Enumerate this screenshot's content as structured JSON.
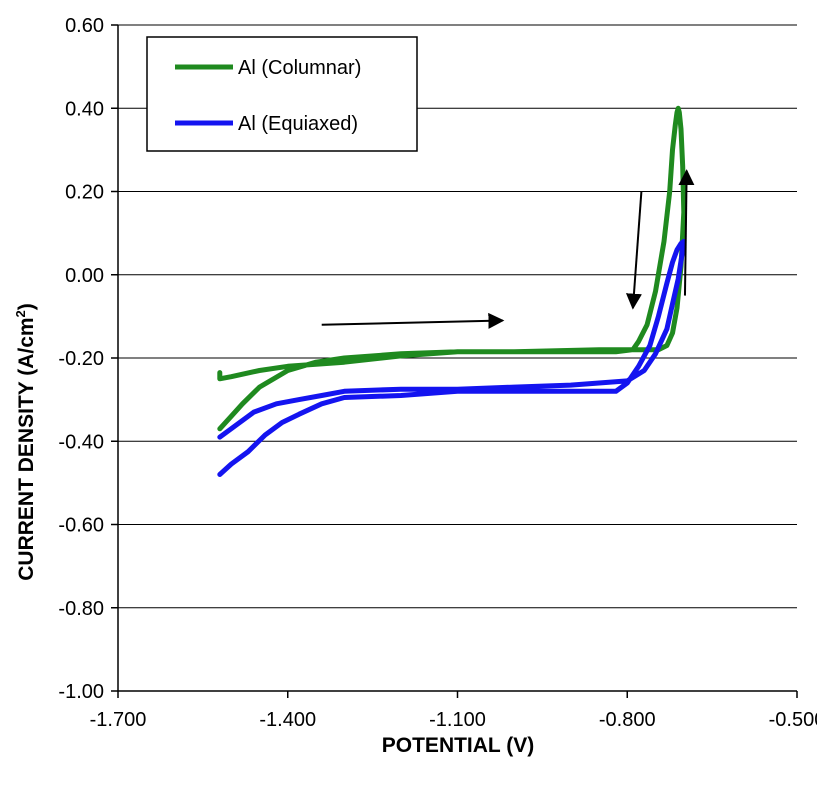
{
  "chart_data": {
    "type": "line",
    "title": "",
    "xlabel": "POTENTIAL (V)",
    "ylabel_main": "CURRENT DENSITY (A/cm",
    "ylabel_sup": "2",
    "ylabel_end": ")",
    "xlim": [
      -1.7,
      -0.5
    ],
    "ylim": [
      -1.0,
      0.6
    ],
    "x_ticks": [
      -1.7,
      -1.4,
      -1.1,
      -0.8,
      -0.5
    ],
    "x_tick_labels": [
      "-1.700",
      "-1.400",
      "-1.100",
      "-0.800",
      "-0.500"
    ],
    "y_ticks": [
      -1.0,
      -0.8,
      -0.6,
      -0.4,
      -0.2,
      0.0,
      0.2,
      0.4,
      0.6
    ],
    "y_tick_labels": [
      "-1.00",
      "-0.80",
      "-0.60",
      "-0.40",
      "-0.20",
      "0.00",
      "0.20",
      "0.40",
      "0.60"
    ],
    "grid": "horizontal",
    "legend_position": "top-left",
    "series": [
      {
        "name": "Al (Columnar)",
        "color": "#1f8a1f",
        "x": [
          -1.52,
          -1.52,
          -1.5,
          -1.45,
          -1.4,
          -1.3,
          -1.2,
          -1.1,
          -1.0,
          -0.9,
          -0.82,
          -0.79,
          -0.78,
          -0.765,
          -0.75,
          -0.735,
          -0.725,
          -0.72,
          -0.715,
          -0.712,
          -0.71,
          -0.708,
          -0.705,
          -0.702,
          -0.7,
          -0.705,
          -0.712,
          -0.72,
          -0.73,
          -0.745,
          -0.76,
          -0.78,
          -0.8,
          -0.85,
          -1.0,
          -1.1,
          -1.2,
          -1.3,
          -1.35,
          -1.4,
          -1.45,
          -1.48,
          -1.5,
          -1.52
        ],
        "y": [
          -0.235,
          -0.25,
          -0.245,
          -0.23,
          -0.22,
          -0.21,
          -0.195,
          -0.185,
          -0.185,
          -0.185,
          -0.185,
          -0.18,
          -0.16,
          -0.12,
          -0.04,
          0.08,
          0.2,
          0.3,
          0.36,
          0.39,
          0.4,
          0.39,
          0.35,
          0.26,
          0.15,
          0.02,
          -0.08,
          -0.14,
          -0.17,
          -0.18,
          -0.18,
          -0.18,
          -0.18,
          -0.18,
          -0.185,
          -0.185,
          -0.19,
          -0.2,
          -0.21,
          -0.23,
          -0.27,
          -0.31,
          -0.34,
          -0.37
        ]
      },
      {
        "name": "Al (Equiaxed)",
        "color": "#1414f0",
        "x": [
          -1.52,
          -1.5,
          -1.47,
          -1.44,
          -1.41,
          -1.38,
          -1.34,
          -1.3,
          -1.2,
          -1.1,
          -1.0,
          -0.9,
          -0.82,
          -0.8,
          -0.78,
          -0.76,
          -0.745,
          -0.73,
          -0.72,
          -0.712,
          -0.705,
          -0.7,
          -0.703,
          -0.71,
          -0.72,
          -0.73,
          -0.75,
          -0.77,
          -0.8,
          -0.85,
          -0.9,
          -1.0,
          -1.1,
          -1.2,
          -1.3,
          -1.34,
          -1.38,
          -1.42,
          -1.46,
          -1.49,
          -1.52
        ],
        "y": [
          -0.48,
          -0.455,
          -0.425,
          -0.385,
          -0.355,
          -0.335,
          -0.31,
          -0.295,
          -0.29,
          -0.28,
          -0.28,
          -0.28,
          -0.28,
          -0.26,
          -0.22,
          -0.17,
          -0.1,
          -0.02,
          0.03,
          0.06,
          0.075,
          0.08,
          0.05,
          -0.01,
          -0.07,
          -0.13,
          -0.19,
          -0.23,
          -0.255,
          -0.26,
          -0.265,
          -0.27,
          -0.275,
          -0.275,
          -0.28,
          -0.29,
          -0.3,
          -0.31,
          -0.33,
          -0.36,
          -0.39
        ]
      }
    ],
    "annotations": [
      {
        "type": "arrow",
        "x1": -1.34,
        "y1": -0.12,
        "x2": -1.02,
        "y2": -0.11
      },
      {
        "type": "arrow",
        "x1": -0.775,
        "y1": 0.2,
        "x2": -0.79,
        "y2": -0.08
      },
      {
        "type": "arrow",
        "x1": -0.698,
        "y1": -0.05,
        "x2": -0.695,
        "y2": 0.25
      }
    ]
  }
}
